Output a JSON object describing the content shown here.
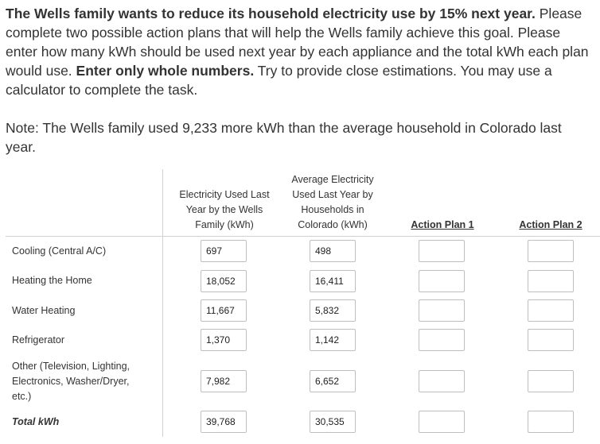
{
  "intro": {
    "bold_lead": "The Wells family wants to reduce its household electricity use by 15% next year.",
    "text_1": " Please complete two possible action plans that will help the Wells family achieve this goal. Please enter how many kWh should be used next year by each appliance and the total kWh each plan would use. ",
    "bold_mid": "Enter only whole numbers.",
    "text_2": " Try to provide close estimations. You may use a calculator to complete the task."
  },
  "note": "Note: The Wells family used 9,233 more kWh than the average household in Colorado last year.",
  "table": {
    "headers": {
      "wells": "Electricity Used Last Year by the Wells Family (kWh)",
      "avg": "Average Electricity Used Last Year by Households in Colorado (kWh)",
      "plan1": "Action Plan 1",
      "plan2": "Action Plan 2"
    },
    "rows": [
      {
        "label": "Cooling (Central A/C)",
        "wells": "697",
        "avg": "498",
        "plan1": "",
        "plan2": ""
      },
      {
        "label": "Heating the Home",
        "wells": "18,052",
        "avg": "16,411",
        "plan1": "",
        "plan2": ""
      },
      {
        "label": "Water Heating",
        "wells": "11,667",
        "avg": "5,832",
        "plan1": "",
        "plan2": ""
      },
      {
        "label": "Refrigerator",
        "wells": "1,370",
        "avg": "1,142",
        "plan1": "",
        "plan2": ""
      },
      {
        "label": "Other (Television, Lighting, Electronics, Washer/Dryer, etc.)",
        "wells": "7,982",
        "avg": "6,652",
        "plan1": "",
        "plan2": ""
      },
      {
        "label": "Total kWh",
        "wells": "39,768",
        "avg": "30,535",
        "plan1": "",
        "plan2": ""
      }
    ]
  }
}
